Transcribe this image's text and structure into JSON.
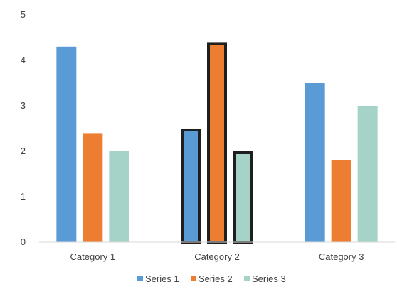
{
  "chart_data": {
    "type": "bar",
    "categories": [
      "Category 1",
      "Category 2",
      "Category 3"
    ],
    "series": [
      {
        "name": "Series 1",
        "values": [
          4.3,
          2.5,
          3.5
        ],
        "color": "#5b9bd5"
      },
      {
        "name": "Series 2",
        "values": [
          2.4,
          4.4,
          1.8
        ],
        "color": "#ed7d31"
      },
      {
        "name": "Series 3",
        "values": [
          2.0,
          2.0,
          3.0
        ],
        "color": "#a5d3c8"
      }
    ],
    "highlighted_category": "Category 2",
    "highlight_color": "#1f1f1f",
    "ylim": [
      0,
      5
    ],
    "y_ticks": [
      "0",
      "1",
      "2",
      "3",
      "4",
      "5"
    ],
    "grid": false,
    "legend_position": "bottom",
    "title": "",
    "xlabel": "",
    "ylabel": ""
  }
}
